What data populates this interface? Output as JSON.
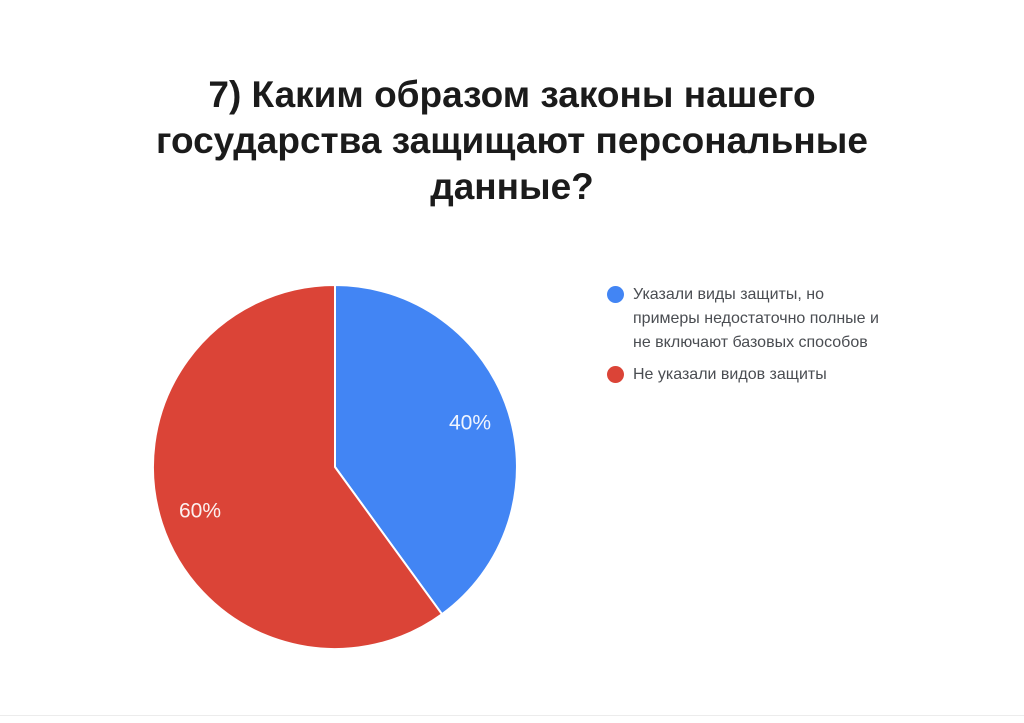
{
  "title": {
    "text": "7) Каким образом законы нашего государства защищают персональные данные?"
  },
  "chart_data": {
    "type": "pie",
    "title": "7) Каким образом законы нашего государства защищают персональные данные?",
    "labels": [
      "Указали виды защиты, но примеры недостаточно полные и не включают базовых способов",
      "Не указали видов защиты"
    ],
    "values": [
      40,
      60
    ],
    "unit": "percent",
    "slice_labels": [
      "40%",
      "60%"
    ],
    "colors": [
      "#4285F4",
      "#DB4437"
    ],
    "start_angle_deg": 0,
    "direction": "clockwise",
    "legend_position": "right",
    "slice_border_color": "#ffffff"
  },
  "legend": {
    "items": [
      {
        "label": "Указали виды защиты, но примеры недостаточно полные и не включают базовых способов",
        "color": "#4285F4",
        "swatch": "circle"
      },
      {
        "label": "Не указали видов защиты",
        "color": "#DB4437",
        "swatch": "circle"
      }
    ]
  }
}
